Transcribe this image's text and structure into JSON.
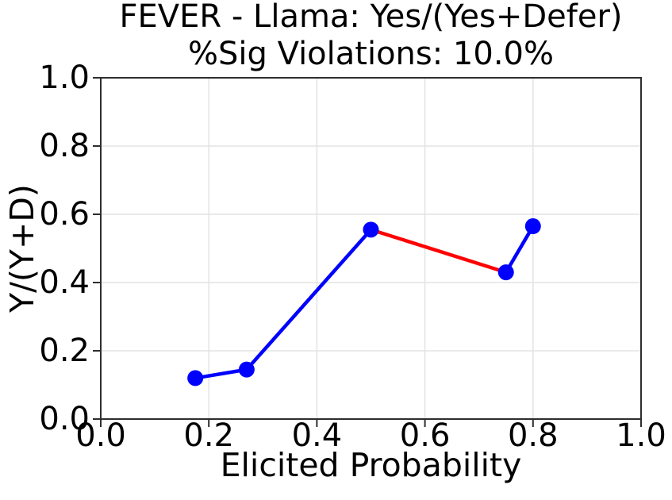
{
  "chart_data": {
    "type": "line",
    "title": "FEVER - Llama: Yes/(Yes+Defer)",
    "subtitle": "%Sig Violations: 10.0%",
    "xlabel": "Elicited Probability",
    "ylabel": "Y/(Y+D)",
    "xlim": [
      0.0,
      1.0
    ],
    "ylim": [
      0.0,
      1.0
    ],
    "grid": true,
    "legend": false,
    "xticks": {
      "values": [
        0.0,
        0.2,
        0.4,
        0.6,
        0.8,
        1.0
      ],
      "labels": [
        "0.0",
        "0.2",
        "0.4",
        "0.6",
        "0.8",
        "1.0"
      ]
    },
    "yticks": {
      "values": [
        0.0,
        0.2,
        0.4,
        0.6,
        0.8,
        1.0
      ],
      "labels": [
        "0.0",
        "0.2",
        "0.4",
        "0.6",
        "0.8",
        "1.0"
      ]
    },
    "points": [
      {
        "x": 0.175,
        "y": 0.12
      },
      {
        "x": 0.27,
        "y": 0.145
      },
      {
        "x": 0.5,
        "y": 0.555
      },
      {
        "x": 0.75,
        "y": 0.43
      },
      {
        "x": 0.8,
        "y": 0.565
      }
    ],
    "segment_colors": [
      "#0000ff",
      "#0000ff",
      "#ff0000",
      "#0000ff"
    ],
    "colors": {
      "marker": "#0000ff",
      "line": "#0000ff",
      "violation_segment": "#ff0000",
      "grid": "#e3e3e3",
      "spine": "#2e2e2e",
      "text": "#000000",
      "background": "#ffffff"
    }
  }
}
